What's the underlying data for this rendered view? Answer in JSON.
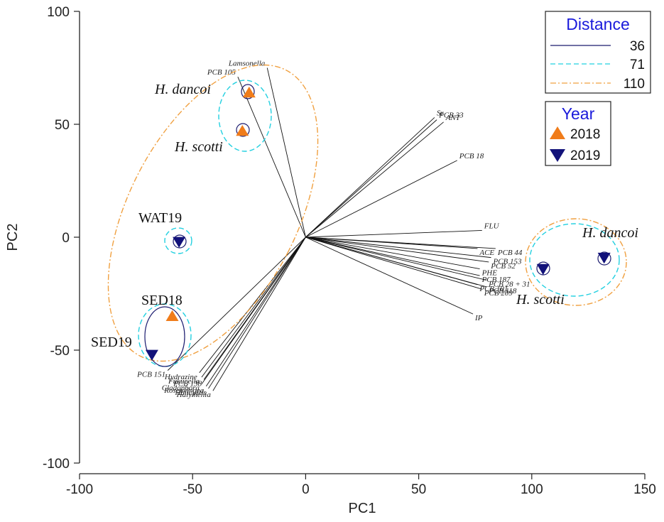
{
  "chart_data": {
    "type": "scatter",
    "title": "",
    "xlabel": "PC1",
    "ylabel": "PC2",
    "xlim": [
      -100,
      150
    ],
    "ylim": [
      -100,
      100
    ],
    "x_ticks": [
      "-100",
      "-50",
      "0",
      "50",
      "100",
      "150"
    ],
    "y_ticks": [
      "100",
      "50",
      "0",
      "-50",
      "-100"
    ],
    "points": [
      {
        "name": "H. dancoi",
        "year": "2018",
        "x": -25,
        "y": 64
      },
      {
        "name": "H. scotti",
        "year": "2018",
        "x": -28,
        "y": 47
      },
      {
        "name": "WAT19",
        "year": "2019",
        "x": -56,
        "y": -2
      },
      {
        "name": "SED18",
        "year": "2018",
        "x": -59,
        "y": -35
      },
      {
        "name": "SED19",
        "year": "2019",
        "x": -68,
        "y": -52
      },
      {
        "name": "H. scotti",
        "year": "2019",
        "x": 105,
        "y": -14
      },
      {
        "name": "H. dancoi",
        "year": "2019",
        "x": 132,
        "y": -9
      }
    ],
    "loadings": [
      {
        "label": "Lamsonella",
        "x": -17,
        "y": 75
      },
      {
        "label": "PCB 105",
        "x": -30,
        "y": 71
      },
      {
        "label": "Sr",
        "x": 57,
        "y": 53
      },
      {
        "label": "PCB 33",
        "x": 58,
        "y": 52
      },
      {
        "label": "ANT",
        "x": 61,
        "y": 51
      },
      {
        "label": "PCB 18",
        "x": 67,
        "y": 34
      },
      {
        "label": "FLU",
        "x": 78,
        "y": 3
      },
      {
        "label": "ACE",
        "x": 76,
        "y": -5
      },
      {
        "label": "PCB 44",
        "x": 84,
        "y": -5
      },
      {
        "label": "PCB 153",
        "x": 82,
        "y": -9
      },
      {
        "label": "PCB 52",
        "x": 81,
        "y": -11
      },
      {
        "label": "PHE",
        "x": 77,
        "y": -14
      },
      {
        "label": "PCB 187",
        "x": 77,
        "y": -17
      },
      {
        "label": "PCB 28 + 31",
        "x": 80,
        "y": -19
      },
      {
        "label": "PCB 209",
        "x": 78,
        "y": -23
      },
      {
        "label": "PCB 101",
        "x": 76,
        "y": -21
      },
      {
        "label": "PCB 118",
        "x": 80,
        "y": -22
      },
      {
        "label": "IP",
        "x": 74,
        "y": -34
      },
      {
        "label": "PCB 151",
        "x": -61,
        "y": -59
      },
      {
        "label": "Hydrazine",
        "x": -47,
        "y": -60
      },
      {
        "label": "Fukucella",
        "x": -46,
        "y": -62
      },
      {
        "label": "PCB 138",
        "x": -45,
        "y": -63
      },
      {
        "label": "Cladophora",
        "x": -46,
        "y": -65
      },
      {
        "label": "Rosenvingea",
        "x": -44,
        "y": -66
      },
      {
        "label": "Halicystis",
        "x": -43,
        "y": -67
      },
      {
        "label": "Halymenia",
        "x": -41,
        "y": -68
      }
    ],
    "ellipses": [
      {
        "distance": "36",
        "members": [
          "H. dancoi 2018"
        ]
      },
      {
        "distance": "36",
        "members": [
          "H. scotti 2018"
        ]
      },
      {
        "distance": "36",
        "members": [
          "SED18",
          "SED19"
        ]
      },
      {
        "distance": "71",
        "members": [
          "H. dancoi 2018",
          "H. scotti 2018"
        ]
      },
      {
        "distance": "71",
        "members": [
          "WAT19"
        ]
      },
      {
        "distance": "71",
        "members": [
          "SED18",
          "SED19"
        ]
      },
      {
        "distance": "71",
        "members": [
          "H. scotti 2019",
          "H. dancoi 2019"
        ]
      },
      {
        "distance": "110",
        "members": [
          "H. dancoi 2018",
          "H. scotti 2018",
          "WAT19",
          "SED18",
          "SED19"
        ]
      },
      {
        "distance": "110",
        "members": [
          "H. scotti 2019",
          "H. dancoi 2019"
        ]
      }
    ]
  },
  "labels": {
    "h_dancoi_top": "H. dancoi",
    "h_scotti_top": "H. scotti",
    "wat19": "WAT19",
    "sed18": "SED18",
    "sed19": "SED19",
    "h_dancoi_right": "H. dancoi",
    "h_scotti_right": "H. scotti"
  },
  "legend": {
    "distance_title": "Distance",
    "distance_items": [
      {
        "label": "36",
        "color": "#1a1a6e",
        "style": "solid"
      },
      {
        "label": "71",
        "color": "#22d0e0",
        "style": "dashed"
      },
      {
        "label": "110",
        "color": "#f0a040",
        "style": "dashdot"
      }
    ],
    "year_title": "Year",
    "year_items": [
      {
        "label": "2018",
        "color": "#f07c1a",
        "marker": "triangle-up"
      },
      {
        "label": "2019",
        "color": "#12127a",
        "marker": "triangle-down"
      }
    ]
  }
}
